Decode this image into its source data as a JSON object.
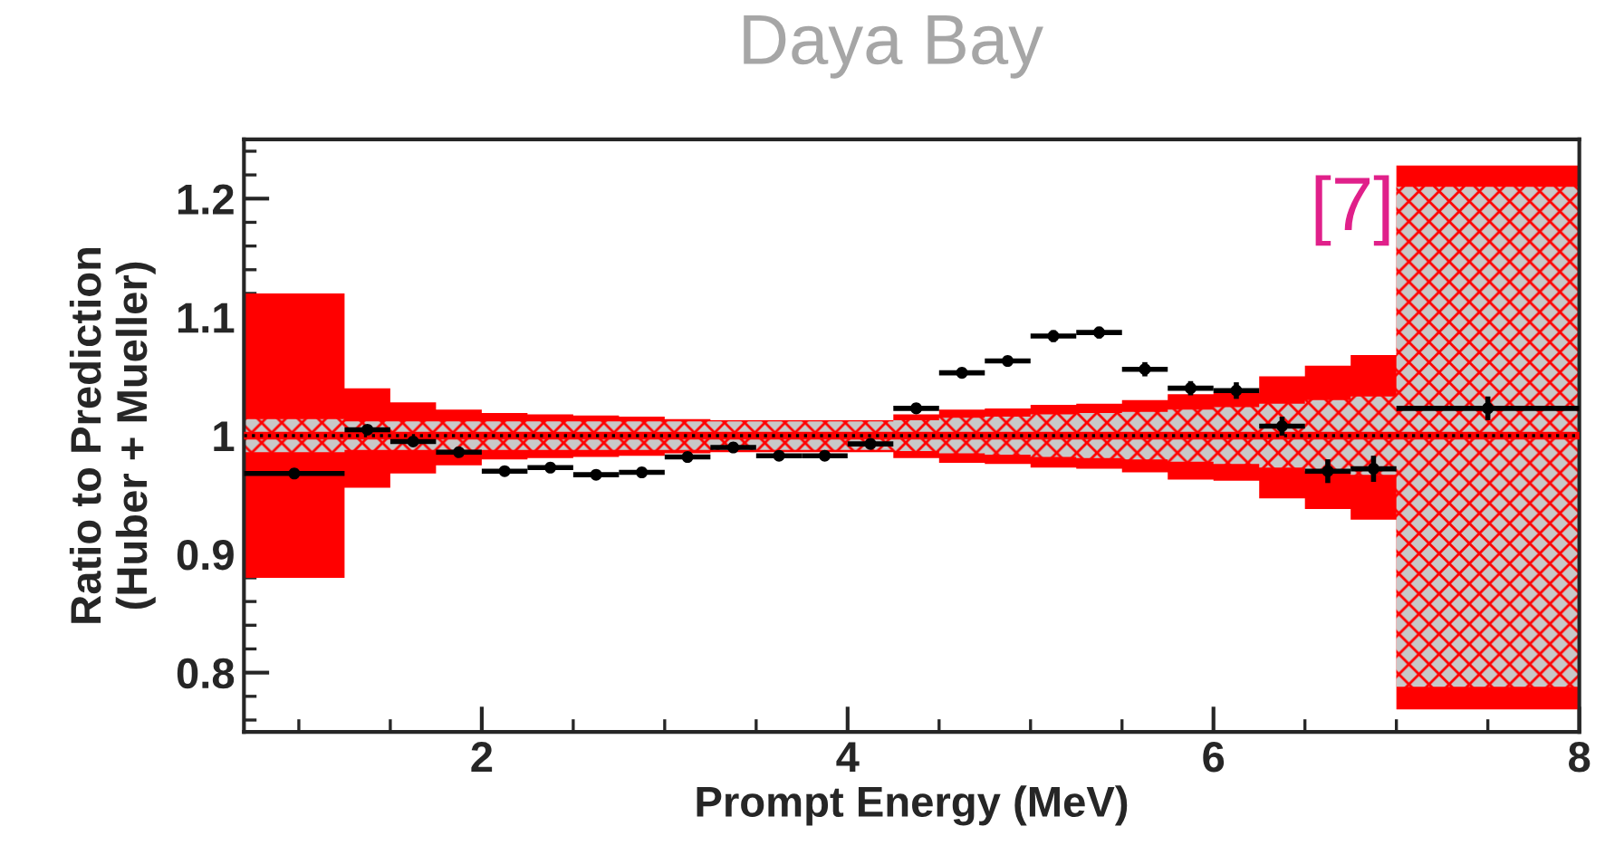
{
  "chart_data": {
    "type": "scatter",
    "title": "Daya Bay",
    "xlabel": "Prompt Energy (MeV)",
    "ylabel": "Ratio to Prediction\n(Huber + Mueller)",
    "annotations": [
      "[7]"
    ],
    "xlim": [
      0.7,
      8
    ],
    "ylim": [
      0.75,
      1.25
    ],
    "xticks": [
      2,
      4,
      6,
      8
    ],
    "yticks": [
      0.8,
      0.9,
      1,
      1.1,
      1.2
    ],
    "grid": false,
    "legend": false,
    "series": [
      {
        "type": "step",
        "color": "#ff0000",
        "line_style": "solid",
        "x": [
          0.7,
          1.25,
          1.5,
          1.75,
          2.0,
          2.25,
          2.5,
          2.75,
          3.0,
          3.25,
          3.5,
          3.75,
          4.0,
          4.25,
          4.5,
          4.75,
          5.0,
          5.25,
          5.5,
          5.75,
          6.0,
          6.25,
          6.5,
          6.75,
          7.0,
          8.0
        ],
        "values": [
          1,
          1,
          1,
          1,
          1,
          1,
          1,
          1,
          1,
          1,
          1,
          1,
          1,
          1,
          1,
          1,
          1,
          1,
          1,
          1,
          1,
          1,
          1,
          1,
          1,
          1
        ],
        "upper": [
          1.12,
          1.04,
          1.028,
          1.022,
          1.019,
          1.018,
          1.017,
          1.016,
          1.014,
          1.013,
          1.013,
          1.013,
          1.013,
          1.018,
          1.022,
          1.023,
          1.026,
          1.027,
          1.03,
          1.035,
          1.036,
          1.05,
          1.059,
          1.068,
          1.228,
          1.228
        ],
        "lower": [
          0.88,
          0.956,
          0.968,
          0.975,
          0.98,
          0.981,
          0.982,
          0.983,
          0.985,
          0.986,
          0.986,
          0.986,
          0.986,
          0.981,
          0.977,
          0.976,
          0.973,
          0.972,
          0.969,
          0.963,
          0.962,
          0.947,
          0.938,
          0.929,
          0.769,
          0.769
        ]
      },
      {
        "type": "step",
        "color": "#000000",
        "line_style": "dotted",
        "x": [
          0.7,
          1.25,
          1.5,
          1.75,
          2.0,
          2.25,
          2.5,
          2.75,
          3.0,
          3.25,
          3.5,
          3.75,
          4.0,
          4.25,
          4.5,
          4.75,
          5.0,
          5.25,
          5.5,
          5.75,
          6.0,
          6.25,
          6.5,
          6.75,
          7.0,
          8.0
        ],
        "values": [
          1,
          1,
          1,
          1,
          1,
          1,
          1,
          1,
          1,
          1,
          1,
          1,
          1,
          1,
          1,
          1,
          1,
          1,
          1,
          1,
          1,
          1,
          1,
          1,
          1,
          1
        ],
        "upper": [
          1.014,
          1.012,
          1.012,
          1.012,
          1.012,
          1.012,
          1.012,
          1.012,
          1.012,
          1.012,
          1.012,
          1.012,
          1.012,
          1.013,
          1.015,
          1.016,
          1.018,
          1.019,
          1.02,
          1.022,
          1.024,
          1.027,
          1.03,
          1.033,
          1.21,
          1.21
        ],
        "lower": [
          0.986,
          0.988,
          0.988,
          0.988,
          0.988,
          0.988,
          0.988,
          0.988,
          0.988,
          0.988,
          0.988,
          0.988,
          0.988,
          0.987,
          0.985,
          0.984,
          0.982,
          0.981,
          0.98,
          0.978,
          0.976,
          0.973,
          0.97,
          0.967,
          0.788,
          0.788
        ]
      },
      {
        "color": "#000000",
        "marker": "circle",
        "x": [
          0.975,
          1.375,
          1.625,
          1.875,
          2.125,
          2.375,
          2.625,
          2.875,
          3.125,
          3.375,
          3.625,
          3.875,
          4.125,
          4.375,
          4.625,
          4.875,
          5.125,
          5.375,
          5.625,
          5.875,
          6.125,
          6.375,
          6.625,
          6.875,
          7.5
        ],
        "values": [
          0.968,
          1.005,
          0.995,
          0.986,
          0.97,
          0.973,
          0.967,
          0.969,
          0.982,
          0.99,
          0.983,
          0.983,
          0.993,
          1.023,
          1.053,
          1.063,
          1.084,
          1.087,
          1.056,
          1.04,
          1.038,
          1.008,
          0.97,
          0.972,
          1.023
        ],
        "errors": [
          0.004,
          0.004,
          0.004,
          0.004,
          0.004,
          0.004,
          0.004,
          0.004,
          0.004,
          0.004,
          0.004,
          0.004,
          0.004,
          0.004,
          0.004,
          0.004,
          0.005,
          0.005,
          0.006,
          0.006,
          0.007,
          0.008,
          0.01,
          0.011,
          0.01
        ],
        "xerrors": [
          0.275,
          0.125,
          0.125,
          0.125,
          0.125,
          0.125,
          0.125,
          0.125,
          0.125,
          0.125,
          0.125,
          0.125,
          0.125,
          0.125,
          0.125,
          0.125,
          0.125,
          0.125,
          0.125,
          0.125,
          0.125,
          0.125,
          0.125,
          0.125,
          0.5
        ]
      }
    ]
  }
}
